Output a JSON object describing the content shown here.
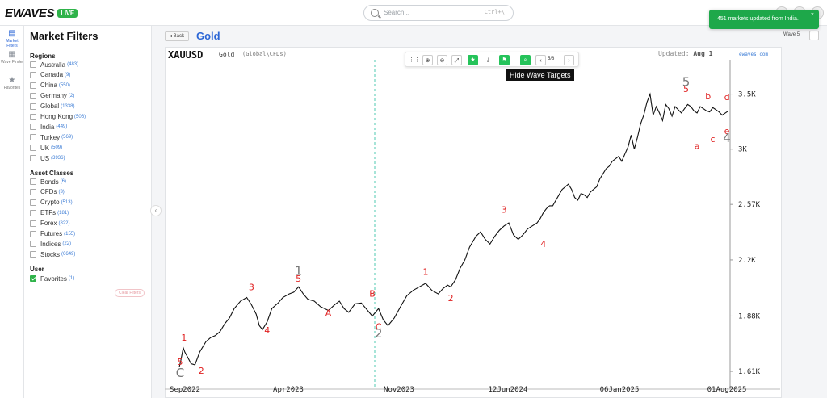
{
  "app": {
    "logo": "EWAVES",
    "badge": "LIVE"
  },
  "search": {
    "placeholder": "Search...",
    "shortcut": "Ctrl+\\"
  },
  "toast": {
    "message": "451 markets updated from India.",
    "close": "×"
  },
  "iconbar": [
    {
      "label": "Market Filters",
      "icon": "chart-icon"
    },
    {
      "label": "Wave Finder",
      "icon": "wave-finder-icon"
    },
    {
      "label": "Favorites",
      "icon": "star-icon"
    }
  ],
  "filters": {
    "title": "Market Filters",
    "regions_title": "Regions",
    "regions": [
      {
        "label": "Australia",
        "count": "(483)"
      },
      {
        "label": "Canada",
        "count": "(9)"
      },
      {
        "label": "China",
        "count": "(550)"
      },
      {
        "label": "Germany",
        "count": "(2)"
      },
      {
        "label": "Global",
        "count": "(1338)"
      },
      {
        "label": "Hong Kong",
        "count": "(506)"
      },
      {
        "label": "India",
        "count": "(449)"
      },
      {
        "label": "Turkey",
        "count": "(569)"
      },
      {
        "label": "UK",
        "count": "(509)"
      },
      {
        "label": "US",
        "count": "(3936)"
      }
    ],
    "assets_title": "Asset Classes",
    "assets": [
      {
        "label": "Bonds",
        "count": "(6)"
      },
      {
        "label": "CFDs",
        "count": "(3)"
      },
      {
        "label": "Crypto",
        "count": "(513)"
      },
      {
        "label": "ETFs",
        "count": "(181)"
      },
      {
        "label": "Forex",
        "count": "(822)"
      },
      {
        "label": "Futures",
        "count": "(155)"
      },
      {
        "label": "Indices",
        "count": "(22)"
      },
      {
        "label": "Stocks",
        "count": "(6649)"
      }
    ],
    "user_title": "User",
    "favorites": {
      "label": "Favorites",
      "count": "(1)",
      "checked": true
    },
    "clear_label": "Clear Filters"
  },
  "header": {
    "back_label": "◂ Back",
    "title": "Gold",
    "wave_label": "Wave 5"
  },
  "chart_header": {
    "symbol": "XAUUSD",
    "name": "Gold",
    "category": "(Global\\CFDs)",
    "updated_label": "Updated:",
    "updated_value": "Aug 1",
    "site": "ewaves.com"
  },
  "toolbar": {
    "page": "5/8",
    "tooltip": "Hide Wave Targets"
  },
  "colors": {
    "accent": "#2b66d6",
    "green": "#25c35a",
    "wave_red": "#e02020",
    "wave_blue": "#3a6fd0",
    "wave_green": "#2c9a2c",
    "wave_grey": "#777777"
  },
  "chart_data": {
    "type": "line",
    "title": "XAUUSD Gold",
    "x_ticks": [
      "Sep2022",
      "Apr2023",
      "Nov2023",
      "12Jun2024",
      "06Jan2025",
      "01Aug2025"
    ],
    "y_ticks": [
      "3.5K",
      "3K",
      "2.57K",
      "2.2K",
      "1.88K",
      "1.61K"
    ],
    "y_scale": "log",
    "series": [
      {
        "name": "XAUUSD",
        "x": [
          0,
          0.1,
          0.25,
          0.35,
          0.5,
          0.75,
          1.0,
          1.3,
          1.7,
          2.0,
          2.3,
          2.6,
          2.9,
          3.2,
          3.5,
          3.9,
          4.3,
          4.6,
          4.9,
          5.1,
          5.3,
          5.6,
          5.9,
          6.3,
          6.6,
          7.0,
          7.3,
          7.6,
          7.9,
          8.2,
          8.6,
          9.0,
          9.5,
          9.9,
          10.2,
          10.5,
          10.8,
          11.2,
          11.6,
          12.0,
          12.3,
          12.7,
          13.0,
          13.3,
          13.7,
          14.1,
          14.5,
          14.9,
          15.3,
          15.7,
          16.1,
          16.5,
          16.8,
          17.1,
          17.3,
          17.6,
          17.9,
          18.2,
          18.5,
          18.9,
          19.2,
          19.5,
          19.8,
          20.1,
          20.4,
          20.7,
          21.0,
          21.3,
          21.6,
          21.9,
          22.2,
          22.5,
          22.8,
          23.0,
          23.2,
          23.4,
          23.6,
          23.8,
          24.0,
          24.2,
          24.4,
          24.6,
          24.8,
          25.0,
          25.2,
          25.4,
          25.6,
          25.8,
          26.0,
          26.2,
          26.4,
          26.6,
          26.8,
          27.0,
          27.2,
          27.4,
          27.6,
          27.8,
          28.0,
          28.2,
          28.4,
          28.6,
          28.8,
          29.0,
          29.2,
          29.4,
          29.6,
          29.8,
          30.0,
          30.2,
          30.4,
          30.6,
          30.8,
          31.0,
          31.2,
          31.4,
          31.6,
          31.8,
          32.0,
          32.2,
          32.4,
          32.6,
          32.8,
          33.0,
          33.2,
          33.4,
          33.6,
          33.8,
          34.0,
          34.2,
          34.4,
          34.6,
          34.8,
          35.0
        ],
        "values": [
          1630,
          1660,
          1720,
          1700,
          1680,
          1645,
          1640,
          1700,
          1750,
          1770,
          1780,
          1800,
          1840,
          1870,
          1920,
          1960,
          1980,
          1940,
          1890,
          1830,
          1810,
          1850,
          1920,
          1950,
          1980,
          2000,
          2010,
          2040,
          2000,
          1970,
          1960,
          1930,
          1910,
          1940,
          1960,
          1920,
          1900,
          1945,
          1950,
          1910,
          1880,
          1920,
          1860,
          1830,
          1870,
          1930,
          1990,
          2020,
          2040,
          2060,
          2020,
          2000,
          2030,
          2050,
          2040,
          2080,
          2150,
          2200,
          2280,
          2350,
          2380,
          2330,
          2300,
          2350,
          2390,
          2420,
          2440,
          2360,
          2330,
          2360,
          2400,
          2420,
          2440,
          2470,
          2510,
          2540,
          2560,
          2560,
          2600,
          2640,
          2680,
          2700,
          2720,
          2680,
          2620,
          2600,
          2650,
          2640,
          2620,
          2660,
          2680,
          2700,
          2760,
          2800,
          2840,
          2860,
          2900,
          2920,
          2940,
          2900,
          2960,
          3020,
          3120,
          3000,
          3100,
          3220,
          3300,
          3420,
          3500,
          3300,
          3380,
          3320,
          3250,
          3400,
          3360,
          3290,
          3380,
          3350,
          3320,
          3360,
          3400,
          3380,
          3340,
          3320,
          3380,
          3360,
          3340,
          3330,
          3370,
          3350,
          3330,
          3300,
          3320,
          3340
        ]
      }
    ],
    "wave_labels": [
      {
        "text": "5",
        "x": 0.05,
        "v": 1640,
        "color": "red"
      },
      {
        "text": "C",
        "x": 0.05,
        "v": 1585,
        "color": "grey"
      },
      {
        "text": "1",
        "x": 0.3,
        "v": 1755,
        "color": "red"
      },
      {
        "text": "2",
        "x": 1.4,
        "v": 1600,
        "color": "red"
      },
      {
        "text": "3",
        "x": 4.6,
        "v": 2020,
        "color": "red"
      },
      {
        "text": "4",
        "x": 5.6,
        "v": 1790,
        "color": "red"
      },
      {
        "text": "1",
        "x": 7.6,
        "v": 2110,
        "color": "grey"
      },
      {
        "text": "5",
        "x": 7.6,
        "v": 2070,
        "color": "red"
      },
      {
        "text": "A",
        "x": 9.5,
        "v": 1880,
        "color": "red"
      },
      {
        "text": "B",
        "x": 12.3,
        "v": 1985,
        "color": "red"
      },
      {
        "text": "C",
        "x": 12.7,
        "v": 1810,
        "color": "red"
      },
      {
        "text": "2",
        "x": 12.7,
        "v": 1770,
        "color": "grey"
      },
      {
        "text": "1",
        "x": 15.7,
        "v": 2110,
        "color": "red"
      },
      {
        "text": "2",
        "x": 17.3,
        "v": 1960,
        "color": "red"
      },
      {
        "text": "3",
        "x": 20.7,
        "v": 2510,
        "color": "red"
      },
      {
        "text": "4",
        "x": 23.2,
        "v": 2280,
        "color": "red"
      },
      {
        "text": "5",
        "x": 32.3,
        "v": 3580,
        "color": "grey"
      },
      {
        "text": "5",
        "x": 32.3,
        "v": 3520,
        "color": "red"
      },
      {
        "text": "a",
        "x": 33.0,
        "v": 3000,
        "color": "red"
      },
      {
        "text": "b",
        "x": 33.7,
        "v": 3450,
        "color": "red"
      },
      {
        "text": "c",
        "x": 34.0,
        "v": 3060,
        "color": "red"
      },
      {
        "text": "d",
        "x": 34.9,
        "v": 3440,
        "color": "red"
      },
      {
        "text": "e",
        "x": 34.9,
        "v": 3130,
        "color": "red"
      },
      {
        "text": "4",
        "x": 34.9,
        "v": 3060,
        "color": "grey"
      }
    ]
  }
}
